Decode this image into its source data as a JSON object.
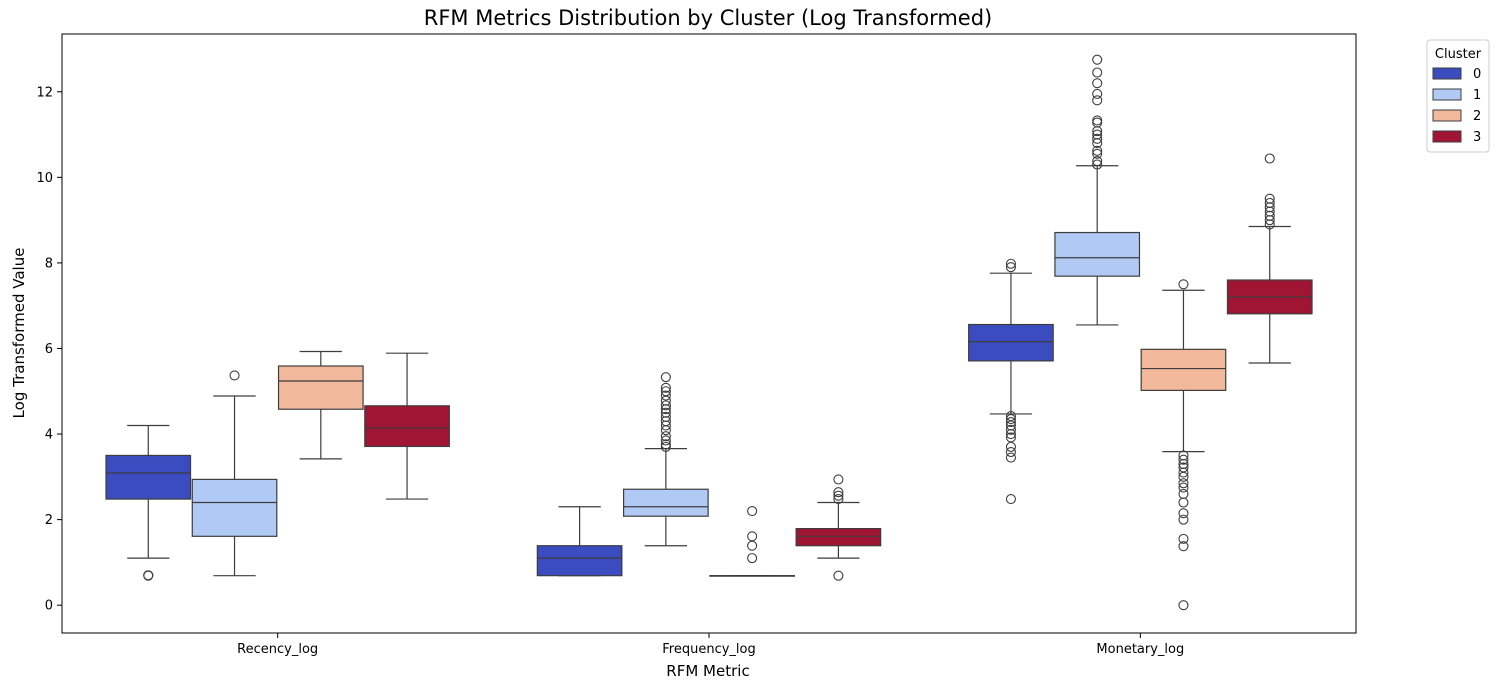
{
  "chart_data": {
    "type": "box",
    "title": "RFM Metrics Distribution by Cluster (Log Transformed)",
    "xlabel": "RFM Metric",
    "ylabel": "Log Transformed Value",
    "ylim": [
      -0.65,
      13.35
    ],
    "yticks": [
      0,
      2,
      4,
      6,
      8,
      10,
      12
    ],
    "grid": false,
    "categories": [
      "Recency_log",
      "Frequency_log",
      "Monetary_log"
    ],
    "legend": {
      "title": "Cluster",
      "position": "outside-top-right"
    },
    "series": [
      {
        "name": "0",
        "color": "#3b4cc0",
        "boxes": [
          {
            "q1": 2.48,
            "median": 3.09,
            "q3": 3.5,
            "whisker_low": 1.1,
            "whisker_high": 4.2,
            "outliers": [
              0.69,
              0.7
            ]
          },
          {
            "q1": 0.69,
            "median": 1.1,
            "q3": 1.39,
            "whisker_low": 0.69,
            "whisker_high": 2.3,
            "outliers": []
          },
          {
            "q1": 5.71,
            "median": 6.16,
            "q3": 6.56,
            "whisker_low": 4.47,
            "whisker_high": 7.76,
            "outliers": [
              7.98,
              7.9,
              4.42,
              4.35,
              4.28,
              4.2,
              4.1,
              4.0,
              3.92,
              3.7,
              3.58,
              3.45,
              2.48
            ]
          }
        ]
      },
      {
        "name": "1",
        "color": "#b1c9f5",
        "boxes": [
          {
            "q1": 1.61,
            "median": 2.4,
            "q3": 2.94,
            "whisker_low": 0.69,
            "whisker_high": 4.89,
            "outliers": [
              5.37
            ]
          },
          {
            "q1": 2.08,
            "median": 2.3,
            "q3": 2.71,
            "whisker_low": 1.39,
            "whisker_high": 3.66,
            "outliers": [
              3.7,
              3.76,
              3.85,
              3.95,
              4.09,
              4.2,
              4.3,
              4.4,
              4.5,
              4.58,
              4.67,
              4.78,
              4.9,
              5.0,
              5.08,
              5.33
            ]
          },
          {
            "q1": 7.69,
            "median": 8.12,
            "q3": 8.71,
            "whisker_low": 6.55,
            "whisker_high": 10.27,
            "outliers": [
              10.3,
              10.38,
              10.55,
              10.62,
              10.8,
              10.9,
              11.0,
              11.08,
              11.28,
              11.33,
              11.8,
              11.95,
              12.2,
              12.45,
              12.75
            ]
          }
        ]
      },
      {
        "name": "2",
        "color": "#f2b89c",
        "boxes": [
          {
            "q1": 4.58,
            "median": 5.24,
            "q3": 5.59,
            "whisker_low": 3.42,
            "whisker_high": 5.93,
            "outliers": []
          },
          {
            "q1": 0.69,
            "median": 0.69,
            "q3": 0.69,
            "whisker_low": 0.69,
            "whisker_high": 0.69,
            "outliers": [
              1.1,
              1.39,
              1.61,
              2.2
            ]
          },
          {
            "q1": 5.02,
            "median": 5.53,
            "q3": 5.98,
            "whisker_low": 3.59,
            "whisker_high": 7.36,
            "outliers": [
              7.5,
              3.5,
              3.4,
              3.3,
              3.22,
              3.1,
              3.0,
              2.85,
              2.75,
              2.6,
              2.4,
              2.15,
              2.0,
              1.55,
              1.38,
              0.0
            ]
          }
        ]
      },
      {
        "name": "3",
        "color": "#a11534",
        "boxes": [
          {
            "q1": 3.71,
            "median": 4.14,
            "q3": 4.66,
            "whisker_low": 2.48,
            "whisker_high": 5.89,
            "outliers": []
          },
          {
            "q1": 1.39,
            "median": 1.61,
            "q3": 1.79,
            "whisker_low": 1.1,
            "whisker_high": 2.4,
            "outliers": [
              0.69,
              2.48,
              2.56,
              2.64,
              2.94
            ]
          },
          {
            "q1": 6.81,
            "median": 7.2,
            "q3": 7.6,
            "whisker_low": 5.66,
            "whisker_high": 8.85,
            "outliers": [
              8.9,
              9.0,
              9.1,
              9.2,
              9.3,
              9.4,
              9.5,
              10.44
            ]
          }
        ]
      }
    ]
  }
}
